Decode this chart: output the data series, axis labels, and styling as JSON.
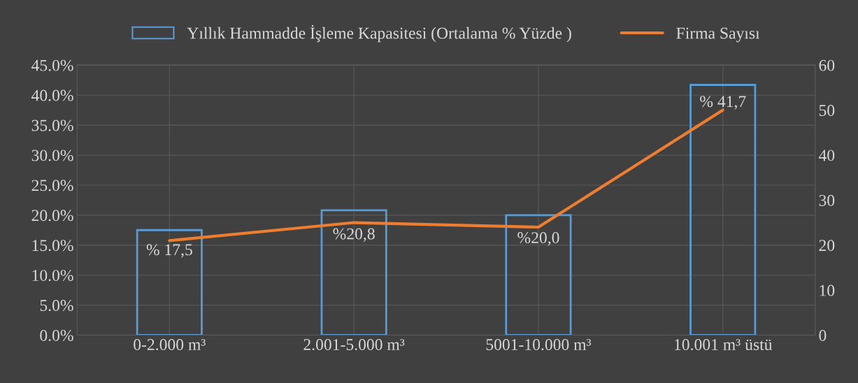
{
  "chart_data": {
    "type": "bar",
    "categories": [
      "0-2.000 m³",
      "2.001-5.000 m³",
      "5001-10.000 m³",
      "10.001 m³ üstü"
    ],
    "series": [
      {
        "name": "Yıllık Hammadde İşleme Kapasitesi (Ortalama % Yüzde )",
        "color": "#5b9bd5",
        "values": [
          17.5,
          20.8,
          20.0,
          41.7
        ],
        "value_labels": [
          "% 17,5",
          "%20,8",
          "%20,0",
          "% 41,7"
        ]
      },
      {
        "name": "Firma Sayısı",
        "type": "line",
        "axis": "y2",
        "color": "#ed7d31",
        "values": [
          21,
          25,
          24,
          50
        ]
      }
    ],
    "ylim": [
      0,
      45
    ],
    "yticks": [
      {
        "value": 0,
        "label": "0.0%"
      },
      {
        "value": 5,
        "label": "5.0%"
      },
      {
        "value": 10,
        "label": "10.0%"
      },
      {
        "value": 15,
        "label": "15.0%"
      },
      {
        "value": 20,
        "label": "20.0%"
      },
      {
        "value": 25,
        "label": "25.0%"
      },
      {
        "value": 30,
        "label": "30.0%"
      },
      {
        "value": 35,
        "label": "35.0%"
      },
      {
        "value": 40,
        "label": "40.0%"
      },
      {
        "value": 45,
        "label": "45.0%"
      }
    ],
    "y2lim": [
      0,
      60
    ],
    "y2ticks": [
      0,
      10,
      20,
      30,
      40,
      50,
      60
    ],
    "grid": true,
    "legend": "top",
    "marker": "none",
    "line_style": "solid"
  }
}
